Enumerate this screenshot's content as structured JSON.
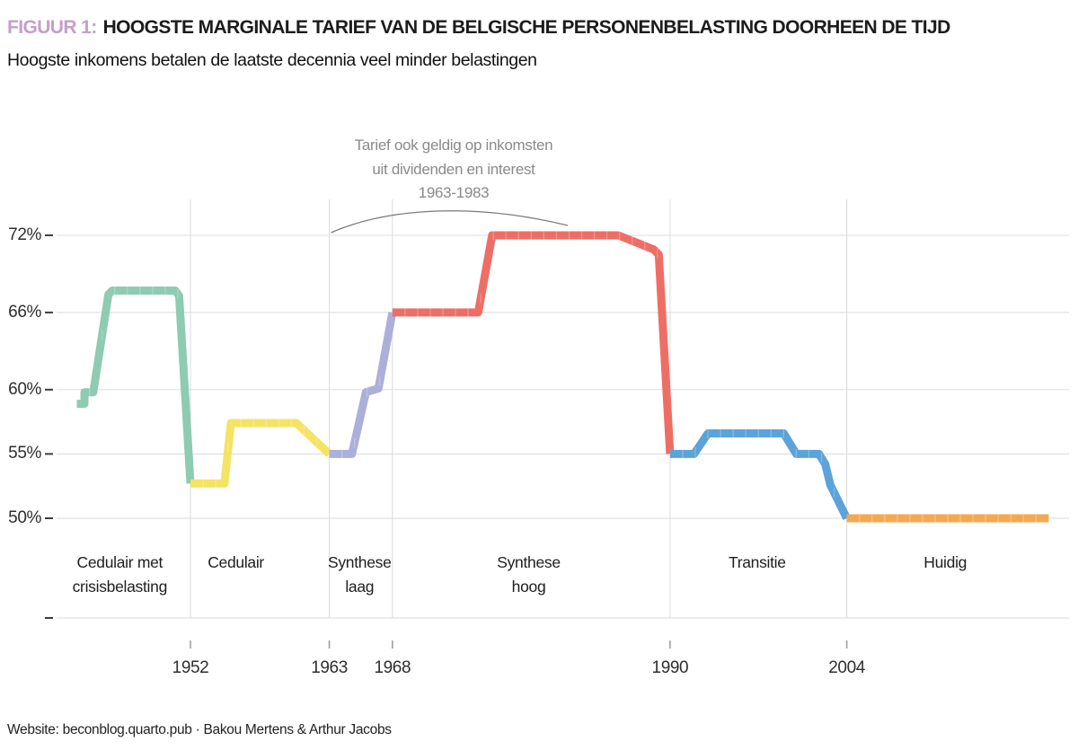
{
  "header": {
    "figure_label": "FIGUUR 1:",
    "title": "HOOGSTE MARGINALE TARIEF VAN DE BELGISCHE PERSONENBELASTING DOORHEEN DE TIJD",
    "subtitle": "Hoogste inkomens betalen de laatste decennia veel minder belastingen",
    "figure_label_color": "#c49fc8"
  },
  "annotation": {
    "lines": [
      "Tarief ook geldig op inkomsten",
      "uit dividenden en interest",
      "1963-1983"
    ],
    "color": "#8a8a8a",
    "arc_from_year": 1963,
    "arc_to_year": 1983
  },
  "footer": {
    "text": "Website: beconblog.quarto.pub · Bakou Mertens & Arthur Jacobs"
  },
  "chart_data": {
    "type": "line",
    "title": "Hoogste marginale tarief van de Belgische personenbelasting doorheen de tijd",
    "xlabel": "",
    "ylabel": "",
    "unit": "%",
    "x_range": [
      1943,
      2020
    ],
    "y_range": [
      50,
      72
    ],
    "grid": true,
    "x_axis": {
      "ticks": [
        {
          "value": 1952,
          "label": "1952"
        },
        {
          "value": 1963,
          "label": "1963"
        },
        {
          "value": 1968,
          "label": "1968"
        },
        {
          "value": 1990,
          "label": "1990"
        },
        {
          "value": 2004,
          "label": "2004"
        }
      ]
    },
    "y_axis": {
      "ticks": [
        {
          "value": 72,
          "label": "72%"
        },
        {
          "value": 66,
          "label": "66%"
        },
        {
          "value": 60,
          "label": "60%"
        },
        {
          "value": 55,
          "label": "55%"
        },
        {
          "value": 50,
          "label": "50%"
        }
      ]
    },
    "series": [
      {
        "name": "Cedulair met crisisbelasting",
        "color": "#8ecbb3",
        "points": [
          [
            1943.0,
            58.9
          ],
          [
            1943.6,
            58.9
          ],
          [
            1943.6,
            59.8
          ],
          [
            1944.3,
            59.8
          ],
          [
            1945.5,
            67.4
          ],
          [
            1945.8,
            67.7
          ],
          [
            1950.8,
            67.7
          ],
          [
            1951.1,
            67.3
          ],
          [
            1952.0,
            52.7
          ]
        ]
      },
      {
        "name": "Cedulair",
        "color": "#f6e263",
        "points": [
          [
            1952.0,
            52.7
          ],
          [
            1954.7,
            52.7
          ],
          [
            1955.2,
            57.4
          ],
          [
            1960.4,
            57.4
          ],
          [
            1963.0,
            55.0
          ]
        ]
      },
      {
        "name": "Synthese laag",
        "color": "#abb0da",
        "points": [
          [
            1963.0,
            55.0
          ],
          [
            1964.8,
            55.0
          ],
          [
            1965.9,
            59.8
          ],
          [
            1966.9,
            60.1
          ],
          [
            1968.0,
            66.0
          ]
        ]
      },
      {
        "name": "Synthese hoog",
        "color": "#ee6e66",
        "points": [
          [
            1968.0,
            66.0
          ],
          [
            1974.8,
            66.0
          ],
          [
            1975.9,
            72.0
          ],
          [
            1985.9,
            72.0
          ],
          [
            1988.7,
            70.9
          ],
          [
            1989.1,
            70.5
          ],
          [
            1990.0,
            55.0
          ]
        ]
      },
      {
        "name": "Transitie",
        "color": "#5ba3d9",
        "points": [
          [
            1990.0,
            55.0
          ],
          [
            1991.9,
            55.0
          ],
          [
            1993.0,
            56.6
          ],
          [
            1999.0,
            56.6
          ],
          [
            2000.0,
            55.0
          ],
          [
            2001.8,
            55.0
          ],
          [
            2002.3,
            54.2
          ],
          [
            2002.7,
            52.6
          ],
          [
            2004.0,
            50.0
          ]
        ]
      },
      {
        "name": "Huidig",
        "color": "#f4a951",
        "points": [
          [
            2004.0,
            50.0
          ],
          [
            2020.0,
            50.0
          ]
        ]
      }
    ],
    "period_labels": [
      {
        "lines": [
          "Cedulair met",
          "crisisbelasting"
        ],
        "center_year": 1946.4
      },
      {
        "lines": [
          "Cedulair"
        ],
        "center_year": 1955.6
      },
      {
        "lines": [
          "Synthese",
          "laag"
        ],
        "center_year": 1965.4
      },
      {
        "lines": [
          "Synthese",
          "hoog"
        ],
        "center_year": 1978.8
      },
      {
        "lines": [
          "Transitie"
        ],
        "center_year": 1996.9
      },
      {
        "lines": [
          "Huidig"
        ],
        "center_year": 2011.8
      }
    ]
  }
}
